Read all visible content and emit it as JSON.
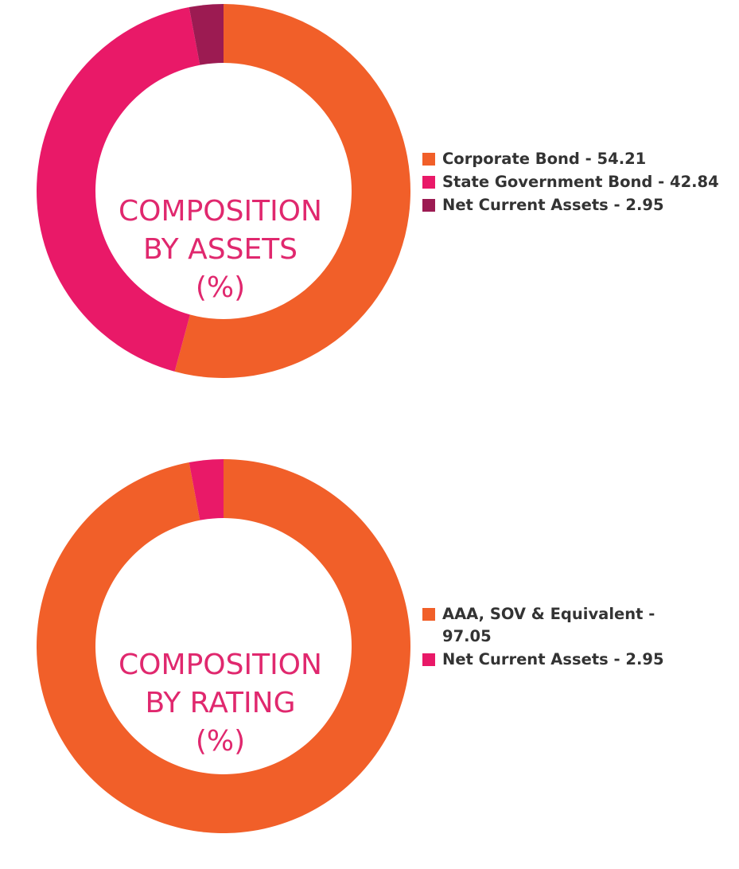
{
  "chart_data": [
    {
      "type": "pie",
      "title_lines": [
        "COMPOSITION",
        "BY ASSETS",
        "(%)"
      ],
      "slices": [
        {
          "label": "Corporate Bond - 54.21",
          "value": 54.21,
          "color": "#f15f29"
        },
        {
          "label": "State Government Bond - 42.84",
          "value": 42.84,
          "color": "#e91968"
        },
        {
          "label": "Net Current Assets - 2.95",
          "value": 2.95,
          "color": "#9c1b52"
        }
      ],
      "legend_position": "right"
    },
    {
      "type": "pie",
      "title_lines": [
        "COMPOSITION",
        "BY RATING",
        "(%)"
      ],
      "slices": [
        {
          "label": "AAA, SOV & Equivalent - 97.05",
          "value": 97.05,
          "color": "#f15f29"
        },
        {
          "label": "Net Current Assets - 2.95",
          "value": 2.95,
          "color": "#e91968"
        }
      ],
      "legend_position": "right"
    }
  ]
}
